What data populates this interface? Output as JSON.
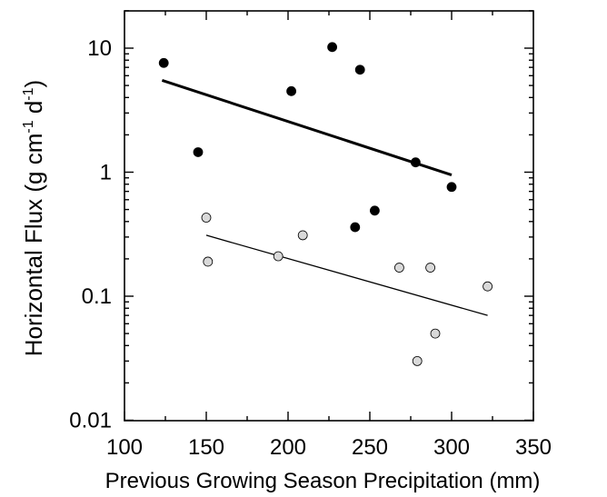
{
  "chart_data": {
    "type": "scatter",
    "xlabel": "Previous Growing Season Precipitation (mm)",
    "ylabel": "Horizontal Flux (g cm-1 d-1)",
    "ylabel_parts": {
      "prefix": "Horizontal Flux (g cm",
      "sup1": "-1",
      "mid": " d",
      "sup2": "-1",
      "suffix": ")"
    },
    "xlim": [
      100,
      350
    ],
    "ylim": [
      0.01,
      20
    ],
    "yscale": "log",
    "grid": false,
    "x_ticks": [
      100,
      150,
      200,
      250,
      300,
      350
    ],
    "x_tick_labels": [
      "100",
      "150",
      "200",
      "250",
      "300",
      "350"
    ],
    "y_ticks": [
      0.01,
      0.1,
      1,
      10
    ],
    "y_tick_labels": [
      "0.01",
      "0.1",
      "1",
      "10"
    ],
    "series": [
      {
        "marker_fill": "#000000",
        "marker_stroke": "#000000",
        "points": [
          {
            "x": 124,
            "y": 7.6
          },
          {
            "x": 145,
            "y": 1.45
          },
          {
            "x": 202,
            "y": 4.5
          },
          {
            "x": 227,
            "y": 10.2
          },
          {
            "x": 241,
            "y": 0.36
          },
          {
            "x": 244,
            "y": 6.7
          },
          {
            "x": 253,
            "y": 0.49
          },
          {
            "x": 278,
            "y": 1.2
          },
          {
            "x": 300,
            "y": 0.76
          }
        ],
        "fit": {
          "x": [
            123,
            300
          ],
          "y": [
            5.5,
            0.95
          ],
          "stroke_width": 3
        }
      },
      {
        "marker_fill": "#d9d9d9",
        "marker_stroke": "#000000",
        "points": [
          {
            "x": 150,
            "y": 0.43
          },
          {
            "x": 151,
            "y": 0.19
          },
          {
            "x": 194,
            "y": 0.21
          },
          {
            "x": 209,
            "y": 0.31
          },
          {
            "x": 268,
            "y": 0.17
          },
          {
            "x": 279,
            "y": 0.03
          },
          {
            "x": 287,
            "y": 0.17
          },
          {
            "x": 290,
            "y": 0.05
          },
          {
            "x": 322,
            "y": 0.12
          }
        ],
        "fit": {
          "x": [
            150,
            322
          ],
          "y": [
            0.31,
            0.07
          ],
          "stroke_width": 1.3
        }
      }
    ]
  }
}
